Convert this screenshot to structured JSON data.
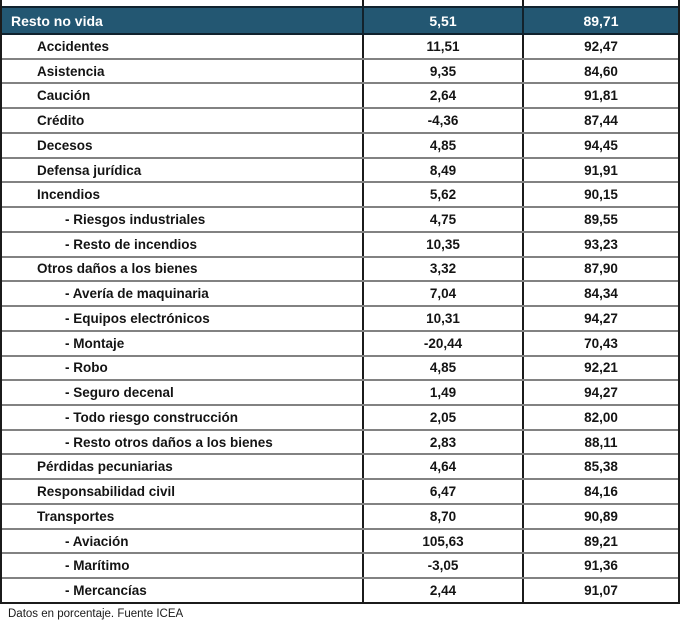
{
  "colors": {
    "header_bg": "#235772",
    "header_text": "#ffffff",
    "header_border": "#10222e",
    "cell_border": "#1b1b1b",
    "row_separator": "#828282",
    "body_text": "#141414"
  },
  "table": {
    "header_row": {
      "label": "Resto no vida",
      "col1": "5,51",
      "col2": "89,71"
    },
    "rows": [
      {
        "label": "Accidentes",
        "col1": "11,51",
        "col2": "92,47",
        "level": 1
      },
      {
        "label": "Asistencia",
        "col1": "9,35",
        "col2": "84,60",
        "level": 1
      },
      {
        "label": "Caución",
        "col1": "2,64",
        "col2": "91,81",
        "level": 1
      },
      {
        "label": "Crédito",
        "col1": "-4,36",
        "col2": "87,44",
        "level": 1
      },
      {
        "label": "Decesos",
        "col1": "4,85",
        "col2": "94,45",
        "level": 1
      },
      {
        "label": "Defensa jurídica",
        "col1": "8,49",
        "col2": "91,91",
        "level": 1
      },
      {
        "label": "Incendios",
        "col1": "5,62",
        "col2": "90,15",
        "level": 1
      },
      {
        "label": "- Riesgos industriales",
        "col1": "4,75",
        "col2": "89,55",
        "level": 2
      },
      {
        "label": "- Resto de incendios",
        "col1": "10,35",
        "col2": "93,23",
        "level": 2
      },
      {
        "label": "Otros daños a los bienes",
        "col1": "3,32",
        "col2": "87,90",
        "level": 1
      },
      {
        "label": "- Avería de maquinaria",
        "col1": "7,04",
        "col2": "84,34",
        "level": 2
      },
      {
        "label": "- Equipos electrónicos",
        "col1": "10,31",
        "col2": "94,27",
        "level": 2
      },
      {
        "label": "- Montaje",
        "col1": "-20,44",
        "col2": "70,43",
        "level": 2
      },
      {
        "label": "- Robo",
        "col1": "4,85",
        "col2": "92,21",
        "level": 2
      },
      {
        "label": "- Seguro decenal",
        "col1": "1,49",
        "col2": "94,27",
        "level": 2
      },
      {
        "label": "- Todo riesgo construcción",
        "col1": "2,05",
        "col2": "82,00",
        "level": 2
      },
      {
        "label": "- Resto otros daños a los bienes",
        "col1": "2,83",
        "col2": "88,11",
        "level": 2
      },
      {
        "label": "Pérdidas pecuniarias",
        "col1": "4,64",
        "col2": "85,38",
        "level": 1
      },
      {
        "label": "Responsabilidad civil",
        "col1": "6,47",
        "col2": "84,16",
        "level": 1
      },
      {
        "label": "Transportes",
        "col1": "8,70",
        "col2": "90,89",
        "level": 1
      },
      {
        "label": "- Aviación",
        "col1": "105,63",
        "col2": "89,21",
        "level": 2
      },
      {
        "label": "- Marítimo",
        "col1": "-3,05",
        "col2": "91,36",
        "level": 2
      },
      {
        "label": "- Mercancías",
        "col1": "2,44",
        "col2": "91,07",
        "level": 2
      }
    ]
  },
  "footer": {
    "note": "Datos en porcentaje. Fuente ICEA"
  },
  "chart_data": {
    "type": "table",
    "note": "Datos en porcentaje. Fuente ICEA",
    "rows": [
      {
        "label": "Resto no vida",
        "values": [
          5.51,
          89.71
        ],
        "level": 0
      },
      {
        "label": "Accidentes",
        "values": [
          11.51,
          92.47
        ],
        "level": 1
      },
      {
        "label": "Asistencia",
        "values": [
          9.35,
          84.6
        ],
        "level": 1
      },
      {
        "label": "Caución",
        "values": [
          2.64,
          91.81
        ],
        "level": 1
      },
      {
        "label": "Crédito",
        "values": [
          -4.36,
          87.44
        ],
        "level": 1
      },
      {
        "label": "Decesos",
        "values": [
          4.85,
          94.45
        ],
        "level": 1
      },
      {
        "label": "Defensa jurídica",
        "values": [
          8.49,
          91.91
        ],
        "level": 1
      },
      {
        "label": "Incendios",
        "values": [
          5.62,
          90.15
        ],
        "level": 1
      },
      {
        "label": "Riesgos industriales",
        "values": [
          4.75,
          89.55
        ],
        "level": 2
      },
      {
        "label": "Resto de incendios",
        "values": [
          10.35,
          93.23
        ],
        "level": 2
      },
      {
        "label": "Otros daños a los bienes",
        "values": [
          3.32,
          87.9
        ],
        "level": 1
      },
      {
        "label": "Avería de maquinaria",
        "values": [
          7.04,
          84.34
        ],
        "level": 2
      },
      {
        "label": "Equipos electrónicos",
        "values": [
          10.31,
          94.27
        ],
        "level": 2
      },
      {
        "label": "Montaje",
        "values": [
          -20.44,
          70.43
        ],
        "level": 2
      },
      {
        "label": "Robo",
        "values": [
          4.85,
          92.21
        ],
        "level": 2
      },
      {
        "label": "Seguro decenal",
        "values": [
          1.49,
          94.27
        ],
        "level": 2
      },
      {
        "label": "Todo riesgo construcción",
        "values": [
          2.05,
          82.0
        ],
        "level": 2
      },
      {
        "label": "Resto otros daños a los bienes",
        "values": [
          2.83,
          88.11
        ],
        "level": 2
      },
      {
        "label": "Pérdidas pecuniarias",
        "values": [
          4.64,
          85.38
        ],
        "level": 1
      },
      {
        "label": "Responsabilidad civil",
        "values": [
          6.47,
          84.16
        ],
        "level": 1
      },
      {
        "label": "Transportes",
        "values": [
          8.7,
          90.89
        ],
        "level": 1
      },
      {
        "label": "Aviación",
        "values": [
          105.63,
          89.21
        ],
        "level": 2
      },
      {
        "label": "Marítimo",
        "values": [
          -3.05,
          91.36
        ],
        "level": 2
      },
      {
        "label": "Mercancías",
        "values": [
          2.44,
          91.07
        ],
        "level": 2
      }
    ]
  }
}
